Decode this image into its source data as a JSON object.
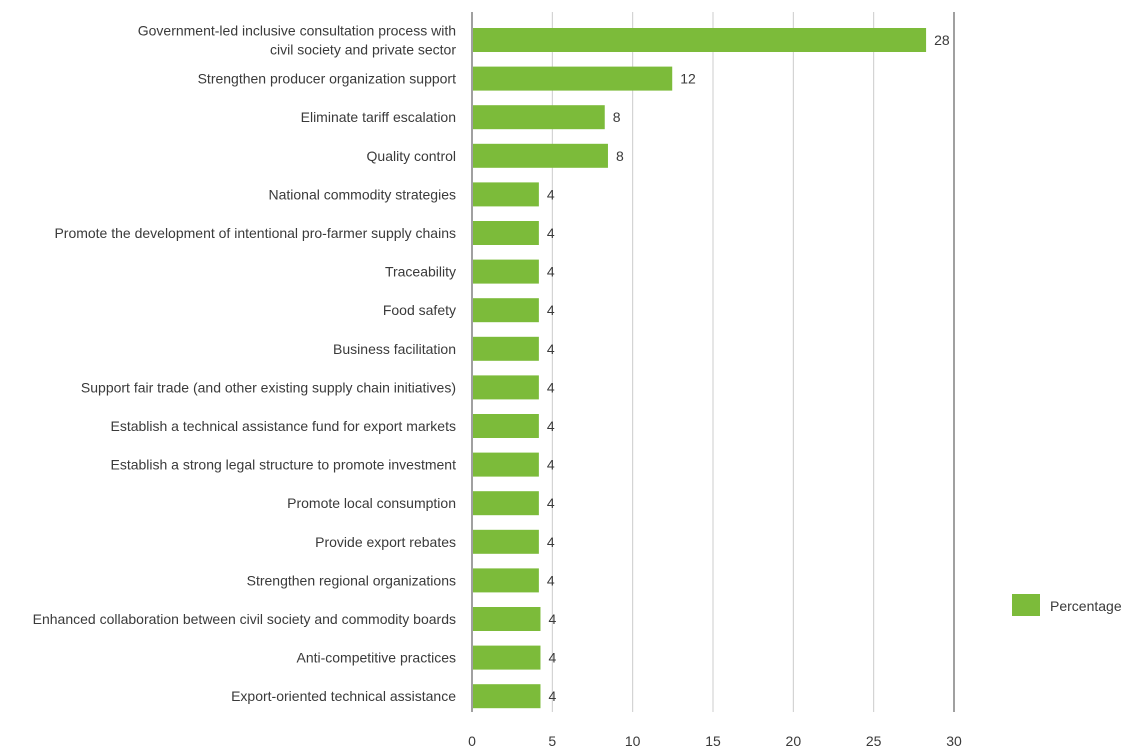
{
  "chart_data": {
    "type": "bar",
    "orientation": "horizontal",
    "categories": [
      [
        "Government-led inclusive consultation process with",
        "civil society and private sector"
      ],
      [
        "Strengthen producer organization support"
      ],
      [
        "Eliminate tariff escalation"
      ],
      [
        "Quality control"
      ],
      [
        "National commodity strategies"
      ],
      [
        "Promote the development of intentional pro-farmer supply chains"
      ],
      [
        "Traceability"
      ],
      [
        "Food safety"
      ],
      [
        "Business facilitation"
      ],
      [
        "Support fair trade (and other existing supply chain initiatives)"
      ],
      [
        "Establish a technical assistance fund for export markets"
      ],
      [
        "Establish a strong legal structure to promote investment"
      ],
      [
        "Promote local consumption"
      ],
      [
        "Provide export rebates"
      ],
      [
        "Strengthen regional organizations"
      ],
      [
        "Enhanced collaboration between civil society and commodity boards"
      ],
      [
        "Anti-competitive practices"
      ],
      [
        "Export-oriented technical assistance"
      ]
    ],
    "series": [
      {
        "name": "Percentage",
        "values": [
          28.2,
          12.4,
          8.2,
          8.4,
          4.1,
          4.1,
          4.1,
          4.1,
          4.1,
          4.1,
          4.1,
          4.1,
          4.1,
          4.1,
          4.1,
          4.2,
          4.2,
          4.2
        ],
        "labels": [
          "28",
          "12",
          "8",
          "8",
          "4",
          "4",
          "4",
          "4",
          "4",
          "4",
          "4",
          "4",
          "4",
          "4",
          "4",
          "4",
          "4",
          "4"
        ]
      }
    ],
    "xlim": [
      0,
      30
    ],
    "xticks": [
      "0",
      "5",
      "10",
      "15",
      "20",
      "25",
      "30"
    ],
    "grid": true,
    "legend_position": "right",
    "bar_color": "#7cbb3a",
    "grid_color": "#cccccc",
    "axis_color": "#a0a0a0"
  }
}
